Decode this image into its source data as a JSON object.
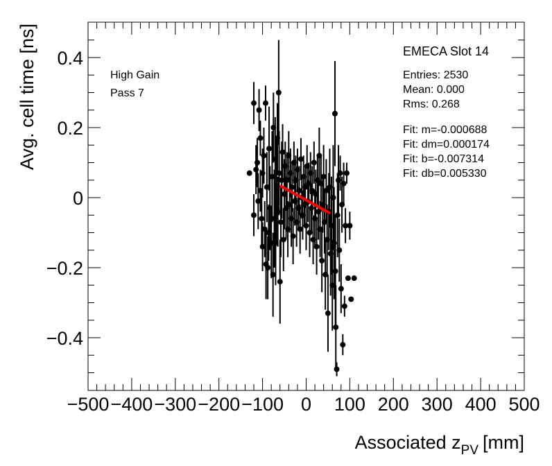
{
  "chart_data": {
    "type": "scatter",
    "xlabel": "Associated z",
    "xlabel_sub": "PV",
    "xlabel_unit": "[mm]",
    "ylabel": "Avg. cell time [ns]",
    "xlim": [
      -500,
      500
    ],
    "ylim": [
      -0.55,
      0.5
    ],
    "x_ticks": [
      -500,
      -400,
      -300,
      -200,
      -100,
      0,
      100,
      200,
      300,
      400,
      500
    ],
    "x_tick_labels": [
      "−500",
      "−400",
      "−300",
      "−200",
      "−100",
      "0",
      "100",
      "200",
      "300",
      "400",
      "500"
    ],
    "y_ticks": [
      -0.4,
      -0.2,
      0,
      0.2,
      0.4
    ],
    "y_tick_labels": [
      "−0.4",
      "−0.2",
      "0",
      "0.2",
      "0.4"
    ],
    "legend_left": [
      "High Gain",
      "Pass 7"
    ],
    "stats_title": "EMECA Slot 14",
    "stats": [
      "Entries: 2530",
      "Mean: 0.000",
      "Rms: 0.268"
    ],
    "fit_text": [
      "Fit: m=-0.000688",
      "Fit: dm=0.000174",
      "Fit: b=-0.007314",
      "Fit: db=0.005330"
    ],
    "fit_line": {
      "x": [
        -60,
        55
      ],
      "y": [
        0.034,
        -0.045
      ],
      "color": "#ff0000"
    },
    "series": [
      {
        "name": "data",
        "points": [
          {
            "x": -130,
            "y": 0.07,
            "e": 0.0
          },
          {
            "x": -120,
            "y": 0.27,
            "e": 0.06
          },
          {
            "x": -120,
            "y": -0.05,
            "e": 0.06
          },
          {
            "x": -115,
            "y": 0.08,
            "e": 0.07
          },
          {
            "x": -112,
            "y": 0.1,
            "e": 0.07
          },
          {
            "x": -110,
            "y": -0.01,
            "e": 0.08
          },
          {
            "x": -108,
            "y": 0.25,
            "e": 0.06
          },
          {
            "x": -105,
            "y": 0.17,
            "e": 0.05
          },
          {
            "x": -105,
            "y": 0.02,
            "e": 0.06
          },
          {
            "x": -102,
            "y": -0.06,
            "e": 0.08
          },
          {
            "x": -100,
            "y": 0.07,
            "e": 0.07
          },
          {
            "x": -100,
            "y": -0.14,
            "e": 0.07
          },
          {
            "x": -97,
            "y": 0.12,
            "e": 0.08
          },
          {
            "x": -95,
            "y": -0.09,
            "e": 0.08
          },
          {
            "x": -93,
            "y": 0.27,
            "e": 0.05
          },
          {
            "x": -92,
            "y": -0.19,
            "e": 0.1
          },
          {
            "x": -90,
            "y": 0.03,
            "e": 0.1
          },
          {
            "x": -88,
            "y": -0.2,
            "e": 0.09
          },
          {
            "x": -86,
            "y": -0.1,
            "e": 0.08
          },
          {
            "x": -85,
            "y": 0.14,
            "e": 0.12
          },
          {
            "x": -83,
            "y": -0.03,
            "e": 0.12
          },
          {
            "x": -80,
            "y": -0.13,
            "e": 0.1
          },
          {
            "x": -78,
            "y": 0.06,
            "e": 0.13
          },
          {
            "x": -76,
            "y": -0.22,
            "e": 0.12
          },
          {
            "x": -75,
            "y": 0.2,
            "e": 0.1
          },
          {
            "x": -73,
            "y": -0.06,
            "e": 0.14
          },
          {
            "x": -71,
            "y": 0.11,
            "e": 0.12
          },
          {
            "x": -70,
            "y": -0.13,
            "e": 0.12
          },
          {
            "x": -68,
            "y": 0.02,
            "e": 0.15
          },
          {
            "x": -66,
            "y": 0.17,
            "e": 0.1
          },
          {
            "x": -65,
            "y": -0.04,
            "e": 0.1
          },
          {
            "x": -63,
            "y": 0.3,
            "e": 0.15
          },
          {
            "x": -62,
            "y": 0.07,
            "e": 0.12
          },
          {
            "x": -60,
            "y": -0.24,
            "e": 0.12
          },
          {
            "x": -58,
            "y": -0.07,
            "e": 0.1
          },
          {
            "x": -56,
            "y": 0.05,
            "e": 0.11
          },
          {
            "x": -54,
            "y": 0.13,
            "e": 0.08
          },
          {
            "x": -52,
            "y": -0.12,
            "e": 0.09
          },
          {
            "x": -50,
            "y": 0.01,
            "e": 0.1
          },
          {
            "x": -48,
            "y": 0.09,
            "e": 0.07
          },
          {
            "x": -46,
            "y": -0.03,
            "e": 0.09
          },
          {
            "x": -44,
            "y": 0.05,
            "e": 0.08
          },
          {
            "x": -42,
            "y": -0.09,
            "e": 0.08
          },
          {
            "x": -40,
            "y": 0.12,
            "e": 0.07
          },
          {
            "x": -38,
            "y": -0.02,
            "e": 0.08
          },
          {
            "x": -36,
            "y": 0.07,
            "e": 0.07
          },
          {
            "x": -34,
            "y": -0.06,
            "e": 0.08
          },
          {
            "x": -32,
            "y": 0.03,
            "e": 0.07
          },
          {
            "x": -30,
            "y": -0.11,
            "e": 0.08
          },
          {
            "x": -28,
            "y": 0.1,
            "e": 0.06
          },
          {
            "x": -26,
            "y": -0.01,
            "e": 0.07
          },
          {
            "x": -24,
            "y": 0.05,
            "e": 0.07
          },
          {
            "x": -22,
            "y": -0.07,
            "e": 0.07
          },
          {
            "x": -20,
            "y": 0.08,
            "e": 0.06
          },
          {
            "x": -18,
            "y": -0.03,
            "e": 0.06
          },
          {
            "x": -16,
            "y": 0.02,
            "e": 0.07
          },
          {
            "x": -14,
            "y": -0.09,
            "e": 0.07
          },
          {
            "x": -12,
            "y": 0.11,
            "e": 0.06
          },
          {
            "x": -10,
            "y": 0.0,
            "e": 0.06
          },
          {
            "x": -8,
            "y": -0.05,
            "e": 0.07
          },
          {
            "x": -6,
            "y": 0.06,
            "e": 0.06
          },
          {
            "x": -4,
            "y": -0.02,
            "e": 0.06
          },
          {
            "x": -2,
            "y": 0.03,
            "e": 0.06
          },
          {
            "x": 0,
            "y": -0.08,
            "e": 0.07
          },
          {
            "x": 2,
            "y": 0.09,
            "e": 0.06
          },
          {
            "x": 4,
            "y": -0.01,
            "e": 0.06
          },
          {
            "x": 6,
            "y": 0.04,
            "e": 0.06
          },
          {
            "x": 8,
            "y": -0.1,
            "e": 0.07
          },
          {
            "x": 10,
            "y": 0.07,
            "e": 0.06
          },
          {
            "x": 12,
            "y": -0.03,
            "e": 0.07
          },
          {
            "x": 14,
            "y": 0.02,
            "e": 0.07
          },
          {
            "x": 16,
            "y": -0.12,
            "e": 0.07
          },
          {
            "x": 18,
            "y": 0.1,
            "e": 0.06
          },
          {
            "x": 20,
            "y": -0.06,
            "e": 0.08
          },
          {
            "x": 22,
            "y": 0.01,
            "e": 0.07
          },
          {
            "x": 24,
            "y": -0.14,
            "e": 0.08
          },
          {
            "x": 26,
            "y": 0.05,
            "e": 0.07
          },
          {
            "x": 28,
            "y": -0.04,
            "e": 0.08
          },
          {
            "x": 30,
            "y": 0.12,
            "e": 0.08
          },
          {
            "x": 32,
            "y": -0.09,
            "e": 0.08
          },
          {
            "x": 34,
            "y": 0.04,
            "e": 0.08
          },
          {
            "x": 36,
            "y": -0.18,
            "e": 0.09
          },
          {
            "x": 38,
            "y": -0.02,
            "e": 0.08
          },
          {
            "x": 40,
            "y": 0.06,
            "e": 0.09
          },
          {
            "x": 42,
            "y": -0.07,
            "e": 0.09
          },
          {
            "x": 44,
            "y": -0.22,
            "e": 0.1
          },
          {
            "x": 46,
            "y": 0.02,
            "e": 0.09
          },
          {
            "x": 48,
            "y": -0.12,
            "e": 0.1
          },
          {
            "x": 50,
            "y": -0.33,
            "e": 0.11
          },
          {
            "x": 52,
            "y": -0.04,
            "e": 0.11
          },
          {
            "x": 54,
            "y": 0.03,
            "e": 0.11
          },
          {
            "x": 56,
            "y": -0.16,
            "e": 0.12
          },
          {
            "x": 58,
            "y": -0.08,
            "e": 0.14
          },
          {
            "x": 60,
            "y": -0.25,
            "e": 0.13
          },
          {
            "x": 62,
            "y": 0.0,
            "e": 0.15
          },
          {
            "x": 64,
            "y": -0.13,
            "e": 0.16
          },
          {
            "x": 66,
            "y": 0.24,
            "e": 0.15
          },
          {
            "x": 67,
            "y": -0.21,
            "e": 0.16
          },
          {
            "x": 68,
            "y": -0.37,
            "e": 0.12
          },
          {
            "x": 70,
            "y": -0.49,
            "e": 0.02
          },
          {
            "x": 72,
            "y": -0.05,
            "e": 0.12
          },
          {
            "x": 74,
            "y": 0.05,
            "e": 0.1
          },
          {
            "x": 76,
            "y": -0.15,
            "e": 0.09
          },
          {
            "x": 78,
            "y": 0.07,
            "e": 0.05
          },
          {
            "x": 80,
            "y": -0.26,
            "e": 0.07
          },
          {
            "x": 82,
            "y": -0.02,
            "e": 0.08
          },
          {
            "x": 84,
            "y": -0.42,
            "e": 0.03
          },
          {
            "x": 86,
            "y": 0.04,
            "e": 0.06
          },
          {
            "x": 88,
            "y": -0.31,
            "e": 0.03
          },
          {
            "x": 90,
            "y": -0.08,
            "e": 0.05
          },
          {
            "x": 93,
            "y": 0.07,
            "e": 0.03
          },
          {
            "x": 96,
            "y": -0.23,
            "e": 0.0
          },
          {
            "x": 100,
            "y": -0.08,
            "e": 0.04
          },
          {
            "x": 103,
            "y": -0.29,
            "e": 0.0
          },
          {
            "x": 110,
            "y": -0.23,
            "e": 0.0
          }
        ]
      }
    ]
  }
}
